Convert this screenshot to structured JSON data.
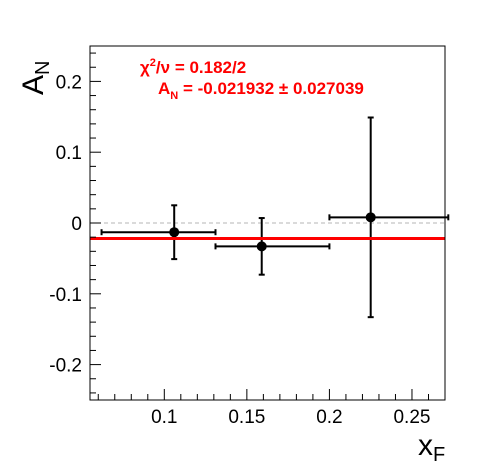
{
  "chart_data": {
    "type": "scatter",
    "x_axis": {
      "label_main": "x",
      "label_sub": "F",
      "range": [
        0.055,
        0.27
      ],
      "ticks": [
        0.1,
        0.15,
        0.2,
        0.25
      ],
      "tick_labels": [
        "0.1",
        "0.15",
        "0.2",
        "0.25"
      ]
    },
    "y_axis": {
      "label_main": "A",
      "label_sub": "N",
      "range": [
        -0.25,
        0.25
      ],
      "ticks": [
        0.2,
        0.1,
        0,
        -0.1,
        -0.2
      ],
      "tick_labels": [
        "0.2",
        "0.1",
        "0",
        "-0.1",
        "-0.2"
      ]
    },
    "points": [
      {
        "x": 0.106,
        "y": -0.013,
        "x_err_low": 0.044,
        "x_err_high": 0.025,
        "y_err": 0.038
      },
      {
        "x": 0.159,
        "y": -0.033,
        "x_err_low": 0.028,
        "x_err_high": 0.041,
        "y_err": 0.04
      },
      {
        "x": 0.225,
        "y": 0.008,
        "x_err_low": 0.025,
        "x_err_high": 0.047,
        "y_err": 0.141
      }
    ],
    "fit_line": {
      "y": -0.021932,
      "color": "#ff0000"
    },
    "zero_line": {
      "y": 0,
      "style": "dashed",
      "color": "#b4b4b4"
    },
    "annotations": {
      "chi_symbol": "χ",
      "chi_sup": "2",
      "chi_rest": "/ν = 0.182/2",
      "fit_main": "A",
      "fit_sub": "N",
      "fit_rest": " = -0.021932 ± 0.027039",
      "color": "#ff0000"
    },
    "grid": false,
    "legend": "none"
  }
}
